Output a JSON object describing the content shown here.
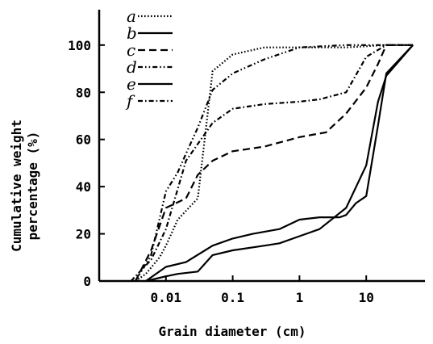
{
  "chart_data": {
    "type": "line",
    "xlabel": "Grain diameter (cm)",
    "ylabel_lines": [
      "Cumulative weight",
      "percentage (%)"
    ],
    "xscale": "log",
    "xlim": [
      0.001,
      100
    ],
    "ylim": [
      0,
      115
    ],
    "x_ticks": [
      0.01,
      0.1,
      1,
      10
    ],
    "x_tick_labels": [
      "0.01",
      "0.1",
      "1",
      "10"
    ],
    "y_ticks": [
      0,
      20,
      40,
      60,
      80,
      100
    ],
    "y_tick_labels": [
      "0",
      "20",
      "40",
      "60",
      "80",
      "100"
    ],
    "legend_position": "top-left",
    "series": [
      {
        "name": "a",
        "dash": "dot",
        "points": [
          [
            0.0035,
            0
          ],
          [
            0.005,
            3
          ],
          [
            0.008,
            10
          ],
          [
            0.01,
            15
          ],
          [
            0.015,
            26
          ],
          [
            0.03,
            35
          ],
          [
            0.05,
            89
          ],
          [
            0.1,
            96
          ],
          [
            0.3,
            99
          ],
          [
            1,
            99
          ],
          [
            5,
            99
          ],
          [
            20,
            100
          ],
          [
            50,
            100
          ]
        ]
      },
      {
        "name": "b",
        "dash": "solid",
        "points": [
          [
            0.005,
            0
          ],
          [
            0.01,
            2
          ],
          [
            0.015,
            3
          ],
          [
            0.03,
            4
          ],
          [
            0.05,
            11
          ],
          [
            0.1,
            13
          ],
          [
            0.3,
            15
          ],
          [
            0.5,
            16
          ],
          [
            1,
            19
          ],
          [
            2,
            22
          ],
          [
            5,
            31
          ],
          [
            10,
            49
          ],
          [
            15,
            76
          ],
          [
            20,
            87
          ],
          [
            50,
            100
          ]
        ]
      },
      {
        "name": "c",
        "dash": "dash",
        "points": [
          [
            0.0035,
            0
          ],
          [
            0.006,
            13
          ],
          [
            0.01,
            31
          ],
          [
            0.02,
            35
          ],
          [
            0.03,
            45
          ],
          [
            0.05,
            51
          ],
          [
            0.1,
            55
          ],
          [
            0.3,
            57
          ],
          [
            1,
            61
          ],
          [
            2.5,
            63
          ],
          [
            5,
            71
          ],
          [
            10,
            82
          ],
          [
            15,
            92
          ],
          [
            20,
            100
          ],
          [
            50,
            100
          ]
        ]
      },
      {
        "name": "d",
        "dash": "dashdotdot",
        "points": [
          [
            0.0035,
            0
          ],
          [
            0.006,
            11
          ],
          [
            0.01,
            38
          ],
          [
            0.015,
            46
          ],
          [
            0.02,
            54
          ],
          [
            0.03,
            65
          ],
          [
            0.05,
            81
          ],
          [
            0.1,
            88
          ],
          [
            0.3,
            94
          ],
          [
            1,
            99
          ],
          [
            5,
            100
          ],
          [
            20,
            100
          ],
          [
            50,
            100
          ]
        ]
      },
      {
        "name": "e",
        "dash": "solid",
        "points": [
          [
            0.005,
            0
          ],
          [
            0.01,
            6
          ],
          [
            0.02,
            8
          ],
          [
            0.05,
            15
          ],
          [
            0.1,
            18
          ],
          [
            0.2,
            20
          ],
          [
            0.5,
            22
          ],
          [
            1,
            26
          ],
          [
            2,
            27
          ],
          [
            4,
            27
          ],
          [
            5,
            28
          ],
          [
            7,
            33
          ],
          [
            10,
            36
          ],
          [
            15,
            66
          ],
          [
            20,
            88
          ],
          [
            50,
            100
          ]
        ]
      },
      {
        "name": "f",
        "dash": "dashdot",
        "points": [
          [
            0.003,
            0
          ],
          [
            0.006,
            9
          ],
          [
            0.01,
            22
          ],
          [
            0.02,
            51
          ],
          [
            0.05,
            67
          ],
          [
            0.1,
            73
          ],
          [
            0.3,
            75
          ],
          [
            1,
            76
          ],
          [
            2,
            77
          ],
          [
            5,
            80
          ],
          [
            10,
            95
          ],
          [
            20,
            100
          ],
          [
            50,
            100
          ]
        ]
      }
    ]
  }
}
